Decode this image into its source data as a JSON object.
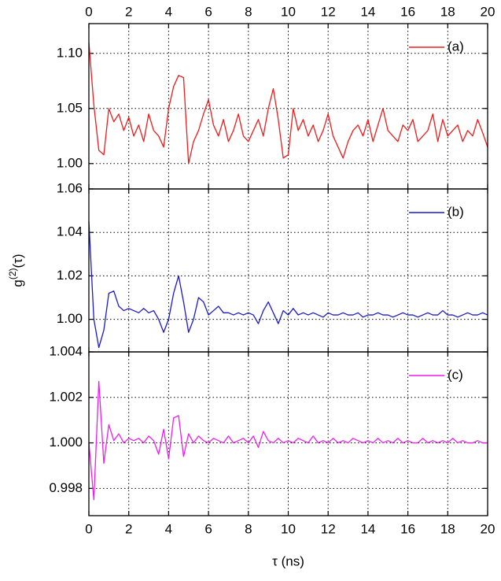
{
  "chart_data": [
    {
      "type": "line",
      "xlim": [
        0,
        20
      ],
      "xticks": [
        0,
        2,
        4,
        6,
        8,
        10,
        12,
        14,
        16,
        18,
        20
      ],
      "ylim": [
        0.977,
        1.127
      ],
      "yticks": [
        {
          "value": 1,
          "label": "1.00"
        },
        1.05,
        {
          "value": 1.1,
          "label": "1.10"
        }
      ],
      "grid": true,
      "legend": "top-right",
      "x": [
        0,
        0.25,
        0.5,
        0.75,
        1,
        1.25,
        1.5,
        1.75,
        2,
        2.25,
        2.5,
        2.75,
        3,
        3.25,
        3.5,
        3.75,
        4,
        4.25,
        4.5,
        4.75,
        5,
        5.25,
        5.5,
        5.75,
        6,
        6.25,
        6.5,
        6.75,
        7,
        7.25,
        7.5,
        7.75,
        8,
        8.25,
        8.5,
        8.75,
        9,
        9.25,
        9.5,
        9.75,
        10,
        10.25,
        10.5,
        10.75,
        11,
        11.25,
        11.5,
        11.75,
        12,
        12.25,
        12.5,
        12.75,
        13,
        13.25,
        13.5,
        13.75,
        14,
        14.25,
        14.5,
        14.75,
        15,
        15.25,
        15.5,
        15.75,
        16,
        16.25,
        16.5,
        16.75,
        17,
        17.25,
        17.5,
        17.75,
        18,
        18.25,
        18.5,
        18.75,
        19,
        19.25,
        19.5,
        19.75,
        20
      ],
      "series": [
        {
          "name": "(a)",
          "color": "#ee1c1c",
          "values": [
            1.11,
            1.053,
            1.012,
            1.008,
            1.05,
            1.038,
            1.045,
            1.03,
            1.042,
            1.025,
            1.035,
            1.02,
            1.045,
            1.03,
            1.025,
            1.015,
            1.05,
            1.07,
            1.08,
            1.078,
            1.0,
            1.02,
            1.03,
            1.045,
            1.058,
            1.035,
            1.025,
            1.04,
            1.02,
            1.03,
            1.045,
            1.025,
            1.02,
            1.03,
            1.04,
            1.025,
            1.05,
            1.068,
            1.04,
            1.005,
            1.008,
            1.05,
            1.03,
            1.04,
            1.025,
            1.035,
            1.02,
            1.03,
            1.045,
            1.025,
            1.015,
            1.005,
            1.02,
            1.03,
            1.035,
            1.025,
            1.04,
            1.02,
            1.035,
            1.05,
            1.03,
            1.025,
            1.02,
            1.035,
            1.03,
            1.04,
            1.02,
            1.025,
            1.03,
            1.045,
            1.02,
            1.04,
            1.025,
            1.03,
            1.035,
            1.02,
            1.03,
            1.025,
            1.04,
            1.028,
            1.015
          ]
        }
      ]
    },
    {
      "type": "line",
      "xlim": [
        0,
        20
      ],
      "xticks": [
        0,
        2,
        4,
        6,
        8,
        10,
        12,
        14,
        16,
        18,
        20
      ],
      "ylim": [
        0.985,
        1.06
      ],
      "yticks": [
        {
          "value": 1,
          "label": "1.00"
        },
        1.02,
        1.04,
        1.06
      ],
      "grid": true,
      "legend": "top-right",
      "ylabel": [
        "g",
        "(2)",
        "(τ)"
      ],
      "x": [
        0,
        0.25,
        0.5,
        0.75,
        1,
        1.25,
        1.5,
        1.75,
        2,
        2.25,
        2.5,
        2.75,
        3,
        3.25,
        3.5,
        3.75,
        4,
        4.25,
        4.5,
        4.75,
        5,
        5.25,
        5.5,
        5.75,
        6,
        6.25,
        6.5,
        6.75,
        7,
        7.25,
        7.5,
        7.75,
        8,
        8.25,
        8.5,
        8.75,
        9,
        9.25,
        9.5,
        9.75,
        10,
        10.25,
        10.5,
        10.75,
        11,
        11.25,
        11.5,
        11.75,
        12,
        12.25,
        12.5,
        12.75,
        13,
        13.25,
        13.5,
        13.75,
        14,
        14.25,
        14.5,
        14.75,
        15,
        15.25,
        15.5,
        15.75,
        16,
        16.25,
        16.5,
        16.75,
        17,
        17.25,
        17.5,
        17.75,
        18,
        18.25,
        18.5,
        18.75,
        19,
        19.25,
        19.5,
        19.75,
        20
      ],
      "series": [
        {
          "name": "(b)",
          "color": "#1a1acc",
          "values": [
            1.045,
            1.0,
            0.987,
            0.995,
            1.012,
            1.013,
            1.006,
            1.004,
            1.005,
            1.004,
            1.003,
            1.005,
            1.003,
            1.004,
            1.0,
            0.994,
            1.0,
            1.012,
            1.02,
            1.008,
            0.994,
            1.0,
            1.01,
            1.008,
            1.002,
            1.004,
            1.006,
            1.003,
            1.003,
            1.002,
            1.003,
            1.002,
            1.003,
            1.002,
            0.998,
            1.004,
            1.008,
            1.003,
            0.998,
            1.004,
            1.002,
            1.005,
            1.002,
            1.003,
            1.002,
            1.003,
            1.002,
            1.001,
            1.003,
            1.002,
            1.002,
            1.003,
            1.002,
            1.002,
            1.003,
            1.001,
            1.002,
            1.002,
            1.003,
            1.002,
            1.002,
            1.001,
            1.002,
            1.003,
            1.002,
            1.002,
            1.001,
            1.002,
            1.003,
            1.002,
            1.002,
            1.004,
            1.002,
            1.002,
            1.001,
            1.002,
            1.003,
            1.002,
            1.002,
            1.003,
            1.002
          ]
        }
      ]
    },
    {
      "type": "line",
      "xlim": [
        0,
        20
      ],
      "xticks": [
        0,
        2,
        4,
        6,
        8,
        10,
        12,
        14,
        16,
        18,
        20
      ],
      "ylim": [
        0.9968,
        1.004
      ],
      "yticks": [
        0.998,
        {
          "value": 1,
          "label": "1.000"
        },
        1.002,
        1.004
      ],
      "grid": true,
      "legend": "top-right",
      "xlabel": "τ (ns)",
      "x": [
        0,
        0.25,
        0.5,
        0.75,
        1,
        1.25,
        1.5,
        1.75,
        2,
        2.25,
        2.5,
        2.75,
        3,
        3.25,
        3.5,
        3.75,
        4,
        4.25,
        4.5,
        4.75,
        5,
        5.25,
        5.5,
        5.75,
        6,
        6.25,
        6.5,
        6.75,
        7,
        7.25,
        7.5,
        7.75,
        8,
        8.25,
        8.5,
        8.75,
        9,
        9.25,
        9.5,
        9.75,
        10,
        10.25,
        10.5,
        10.75,
        11,
        11.25,
        11.5,
        11.75,
        12,
        12.25,
        12.5,
        12.75,
        13,
        13.25,
        13.5,
        13.75,
        14,
        14.25,
        14.5,
        14.75,
        15,
        15.25,
        15.5,
        15.75,
        16,
        16.25,
        16.5,
        16.75,
        17,
        17.25,
        17.5,
        17.75,
        18,
        18.25,
        18.5,
        18.75,
        19,
        19.25,
        19.5,
        19.75,
        20
      ],
      "series": [
        {
          "name": "(c)",
          "color": "#ee1cee",
          "values": [
            1.0,
            0.9975,
            1.0027,
            0.9991,
            1.0008,
            1.0001,
            1.0004,
            1.0,
            1.0002,
            1.0001,
            1.0002,
            1.0,
            1.0003,
            1.0001,
            0.9995,
            1.0006,
            0.9993,
            1.0011,
            1.0012,
            0.9994,
            1.0004,
            1.0,
            1.0003,
            1.0001,
            1.0,
            1.0002,
            1.0001,
            1.0,
            1.0003,
            1.0,
            1.0001,
            1.0002,
            1.0,
            1.0003,
            0.9998,
            1.0005,
            1.0001,
            1.0,
            1.0002,
            1.0,
            1.0001,
            1.0,
            1.0002,
            1.0001,
            1.0,
            1.0003,
            1.0,
            1.0001,
            1.0,
            1.0002,
            1.0,
            1.0001,
            1.0,
            1.0002,
            1.0001,
            1.0,
            1.0001,
            1.0,
            1.0002,
            1.0,
            1.0001,
            1.0,
            1.0002,
            1.0,
            1.0001,
            1.0,
            1.0,
            1.0002,
            1.0,
            1.0001,
            1.0,
            1.0001,
            1.0,
            1.0002,
            1.0,
            1.0001,
            1.0,
            1.0,
            1.0001,
            1.0,
            1.0
          ]
        }
      ]
    }
  ]
}
